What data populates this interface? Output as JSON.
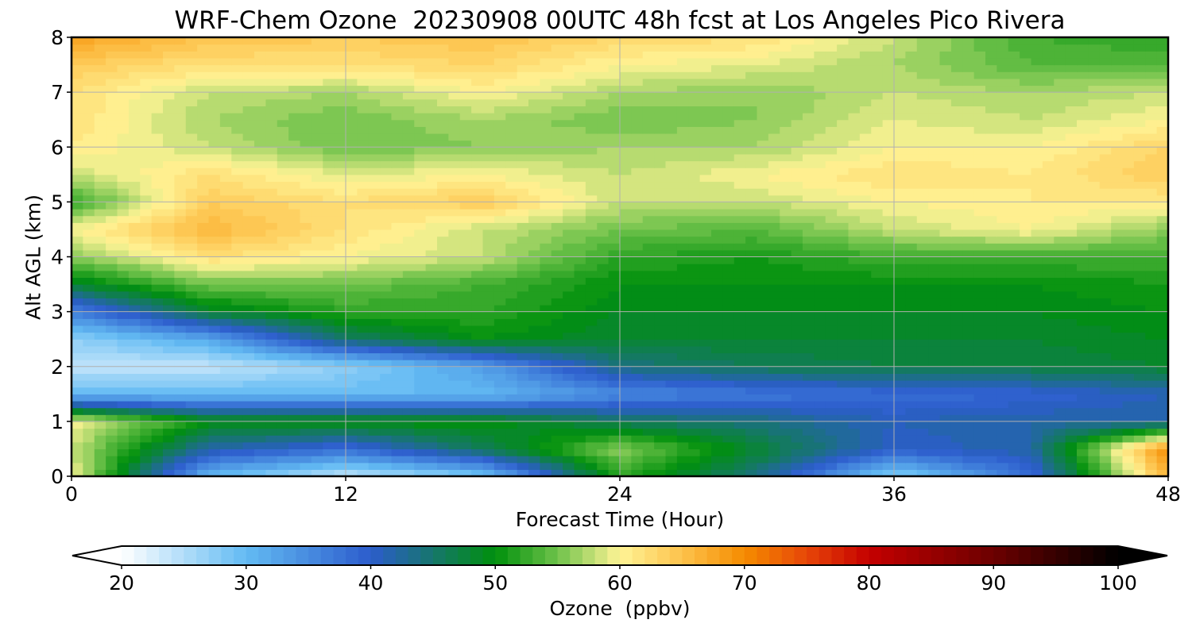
{
  "title": "WRF-Chem Ozone  20230908 00UTC 48h fcst at Los Angeles Pico Rivera",
  "chart_data": {
    "type": "heatmap",
    "title": "WRF-Chem Ozone  20230908 00UTC 48h fcst at Los Angeles Pico Rivera",
    "xlabel": "Forecast Time (Hour)",
    "ylabel": "Alt AGL (km)",
    "xlim": [
      0,
      48
    ],
    "ylim": [
      0,
      8
    ],
    "xticks": [
      "0",
      "12",
      "24",
      "36",
      "48"
    ],
    "yticks": [
      "0",
      "1",
      "2",
      "3",
      "4",
      "5",
      "6",
      "7",
      "8"
    ],
    "grid": true,
    "x": [
      0,
      6,
      12,
      18,
      24,
      30,
      36,
      42,
      48
    ],
    "y": [
      0,
      0.5,
      1,
      1.5,
      2,
      2.5,
      3,
      3.5,
      4,
      4.5,
      5,
      5.5,
      6,
      6.5,
      7,
      7.5,
      8
    ],
    "z": [
      [
        60,
        30,
        24,
        28,
        52,
        44,
        27,
        38,
        66
      ],
      [
        58,
        42,
        38,
        46,
        56,
        48,
        40,
        42,
        70
      ],
      [
        60,
        50,
        50,
        50,
        46,
        44,
        41,
        42,
        42
      ],
      [
        30,
        30,
        30,
        30,
        35,
        37,
        38,
        39,
        41
      ],
      [
        24,
        24,
        27,
        33,
        44,
        46,
        47,
        47,
        48
      ],
      [
        27,
        32,
        45,
        50,
        48,
        48,
        48,
        48,
        49
      ],
      [
        36,
        48,
        52,
        52,
        49,
        49,
        49,
        49,
        50
      ],
      [
        48,
        55,
        55,
        53,
        50,
        50,
        50,
        50,
        51
      ],
      [
        56,
        62,
        60,
        58,
        52,
        51,
        53,
        53,
        53
      ],
      [
        60,
        66,
        62,
        58,
        55,
        54,
        58,
        60,
        56
      ],
      [
        52,
        64,
        62,
        64,
        58,
        58,
        60,
        61,
        61
      ],
      [
        58,
        62,
        59,
        60,
        58,
        60,
        62,
        61,
        64
      ],
      [
        61,
        58,
        55,
        56,
        57,
        57,
        60,
        60,
        63
      ],
      [
        62,
        57,
        55,
        57,
        55,
        56,
        59,
        58,
        60
      ],
      [
        62,
        58,
        57,
        60,
        57,
        56,
        58,
        57,
        58
      ],
      [
        64,
        62,
        62,
        63,
        60,
        59,
        57,
        54,
        54
      ],
      [
        68,
        65,
        64,
        65,
        63,
        62,
        58,
        53,
        52
      ]
    ],
    "colorbar": {
      "label": "Ozone  (ppbv)",
      "min": 20,
      "max": 100,
      "ticks": [
        "20",
        "30",
        "40",
        "50",
        "60",
        "70",
        "80",
        "90",
        "100"
      ],
      "extend": "both",
      "stops": [
        {
          "v": 20,
          "c": "#ffffff"
        },
        {
          "v": 30,
          "c": "#63bbf3"
        },
        {
          "v": 40,
          "c": "#2c5ccc"
        },
        {
          "v": 50,
          "c": "#00900c"
        },
        {
          "v": 55,
          "c": "#6ec24a"
        },
        {
          "v": 60,
          "c": "#fff496"
        },
        {
          "v": 65,
          "c": "#fdc24c"
        },
        {
          "v": 70,
          "c": "#f58c00"
        },
        {
          "v": 75,
          "c": "#e74608"
        },
        {
          "v": 80,
          "c": "#c40000"
        },
        {
          "v": 90,
          "c": "#6c0000"
        },
        {
          "v": 100,
          "c": "#000000"
        }
      ],
      "under_color": "#ffffff",
      "over_color": "#000000"
    }
  }
}
